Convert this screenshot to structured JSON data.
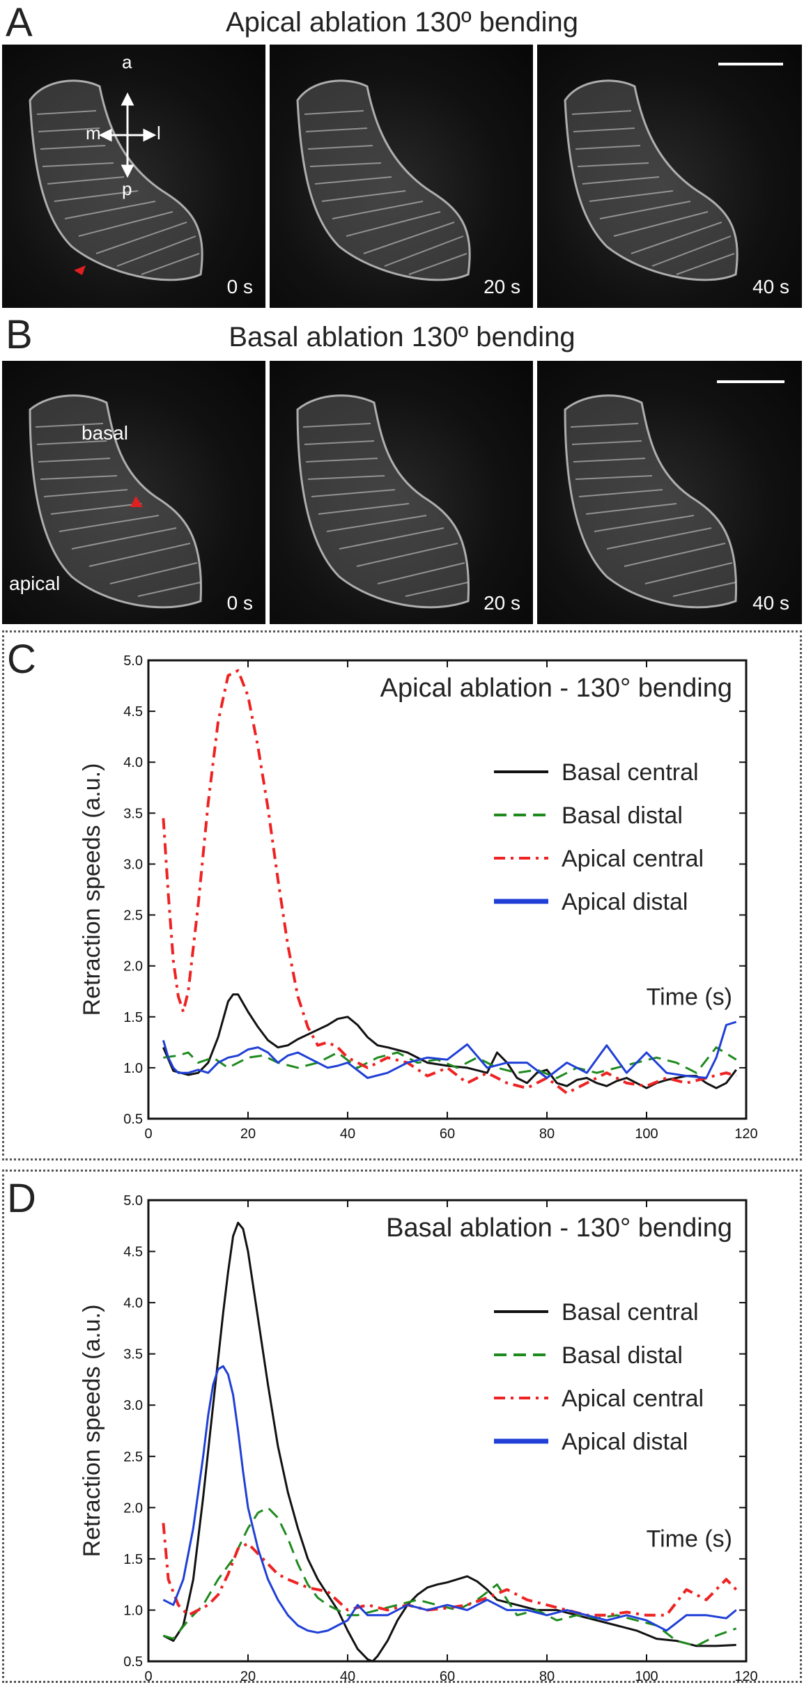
{
  "panels": {
    "A": {
      "letter": "A",
      "title": "Apical ablation 130º bending",
      "compass": {
        "a": "a",
        "p": "p",
        "m": "m",
        "l": "l"
      },
      "times": [
        "0 s",
        "20 s",
        "40 s"
      ]
    },
    "B": {
      "letter": "B",
      "title": "Basal ablation 130º bending",
      "labels": {
        "basal": "basal",
        "apical": "apical"
      },
      "times": [
        "0 s",
        "20 s",
        "40 s"
      ]
    },
    "C": {
      "letter": "C"
    },
    "D": {
      "letter": "D"
    }
  },
  "colors": {
    "basal_central": "#111111",
    "basal_distal": "#1e8a1e",
    "apical_central": "#ee2222",
    "apical_distal": "#1f3fd6",
    "arrowhead": "#e02020"
  },
  "chart_data": [
    {
      "type": "line",
      "title": "Apical ablation  - 130° bending",
      "xlabel": "Time (s)",
      "ylabel": "Retraction speeds (a.u.)",
      "xlim": [
        0,
        120
      ],
      "ylim": [
        0.5,
        5.0
      ],
      "xticks": [
        "0",
        "20",
        "40",
        "60",
        "80",
        "100",
        "120"
      ],
      "yticks": [
        "0.5",
        "1.0",
        "1.5",
        "2.0",
        "2.5",
        "3.0",
        "3.5",
        "4.0",
        "4.5",
        "5.0"
      ],
      "legend_position": "right",
      "series": [
        {
          "name": "Basal central",
          "style": "solid",
          "x": [
            3,
            5,
            8,
            10,
            12,
            14,
            16,
            17,
            18,
            20,
            22,
            24,
            26,
            28,
            30,
            33,
            36,
            38,
            40,
            42,
            44,
            46,
            48,
            52,
            56,
            60,
            64,
            68,
            70,
            72,
            74,
            76,
            78,
            80,
            82,
            84,
            86,
            88,
            90,
            92,
            94,
            96,
            98,
            100,
            102,
            104,
            106,
            108,
            110,
            112,
            114,
            116,
            118
          ],
          "y": [
            1.2,
            0.97,
            0.93,
            0.95,
            1.05,
            1.3,
            1.65,
            1.72,
            1.72,
            1.55,
            1.4,
            1.27,
            1.2,
            1.22,
            1.28,
            1.35,
            1.42,
            1.48,
            1.5,
            1.42,
            1.3,
            1.22,
            1.2,
            1.15,
            1.05,
            1.02,
            1.0,
            0.95,
            1.15,
            1.05,
            0.9,
            0.85,
            0.95,
            0.98,
            0.85,
            0.82,
            0.88,
            0.9,
            0.85,
            0.82,
            0.87,
            0.9,
            0.85,
            0.8,
            0.85,
            0.88,
            0.9,
            0.92,
            0.92,
            0.85,
            0.8,
            0.85,
            0.98
          ]
        },
        {
          "name": "Basal distal",
          "style": "dashed",
          "x": [
            3,
            6,
            8,
            10,
            13,
            16,
            18,
            20,
            23,
            26,
            30,
            34,
            38,
            42,
            46,
            50,
            54,
            58,
            62,
            66,
            70,
            74,
            78,
            82,
            86,
            90,
            94,
            98,
            102,
            106,
            110,
            114,
            118
          ],
          "y": [
            1.1,
            1.12,
            1.15,
            1.05,
            1.1,
            1.0,
            1.05,
            1.1,
            1.12,
            1.05,
            1.0,
            1.05,
            1.15,
            1.0,
            1.1,
            1.15,
            1.05,
            1.08,
            1.0,
            1.1,
            1.0,
            0.95,
            0.98,
            0.9,
            1.0,
            0.95,
            1.0,
            1.05,
            1.1,
            1.05,
            0.95,
            1.2,
            1.08
          ]
        },
        {
          "name": "Apical central",
          "style": "dashdot",
          "x": [
            3,
            4,
            5,
            6,
            7,
            8,
            10,
            12,
            14,
            16,
            18,
            20,
            22,
            24,
            26,
            28,
            30,
            32,
            34,
            36,
            38,
            40,
            44,
            48,
            52,
            56,
            60,
            64,
            68,
            72,
            76,
            80,
            84,
            88,
            92,
            96,
            100,
            104,
            108,
            112,
            116,
            118
          ],
          "y": [
            3.45,
            2.7,
            2.05,
            1.7,
            1.55,
            1.75,
            2.6,
            3.6,
            4.4,
            4.85,
            4.9,
            4.65,
            4.15,
            3.55,
            2.85,
            2.2,
            1.7,
            1.4,
            1.22,
            1.25,
            1.2,
            1.1,
            1.0,
            1.1,
            1.05,
            0.92,
            1.0,
            0.85,
            0.95,
            0.85,
            0.8,
            0.9,
            0.75,
            0.85,
            0.95,
            0.85,
            0.82,
            0.9,
            0.85,
            0.9,
            0.95,
            0.92
          ]
        },
        {
          "name": "Apical distal",
          "style": "solid",
          "x": [
            3,
            4,
            5,
            6,
            8,
            10,
            12,
            14,
            16,
            18,
            20,
            22,
            24,
            26,
            28,
            30,
            32,
            34,
            36,
            38,
            40,
            44,
            48,
            52,
            56,
            60,
            64,
            68,
            72,
            76,
            80,
            84,
            88,
            92,
            96,
            100,
            104,
            108,
            112,
            114,
            116,
            118
          ],
          "y": [
            1.27,
            1.1,
            1.0,
            0.95,
            0.95,
            0.98,
            0.95,
            1.05,
            1.1,
            1.12,
            1.18,
            1.2,
            1.15,
            1.05,
            1.12,
            1.15,
            1.1,
            1.05,
            1.0,
            1.02,
            1.05,
            0.9,
            0.95,
            1.05,
            1.1,
            1.08,
            1.23,
            1.0,
            1.05,
            1.05,
            0.9,
            1.05,
            0.95,
            1.22,
            0.95,
            1.15,
            0.95,
            0.92,
            0.9,
            1.1,
            1.42,
            1.45
          ]
        }
      ]
    },
    {
      "type": "line",
      "title": "Basal ablation  - 130° bending",
      "xlabel": "Time (s)",
      "ylabel": "Retraction speeds (a.u.)",
      "xlim": [
        0,
        120
      ],
      "ylim": [
        0.5,
        5.0
      ],
      "xticks": [
        "0",
        "20",
        "40",
        "60",
        "80",
        "100",
        "120"
      ],
      "yticks": [
        "0.5",
        "1.0",
        "1.5",
        "2.0",
        "2.5",
        "3.0",
        "3.5",
        "4.0",
        "4.5",
        "5.0"
      ],
      "legend_position": "right",
      "series": [
        {
          "name": "Basal central",
          "style": "solid",
          "x": [
            3,
            5,
            7,
            9,
            11,
            13,
            15,
            16,
            17,
            18,
            19,
            20,
            22,
            24,
            26,
            28,
            30,
            32,
            34,
            36,
            38,
            40,
            42,
            44,
            45,
            46,
            48,
            50,
            52,
            54,
            56,
            58,
            60,
            62,
            64,
            66,
            68,
            70,
            74,
            78,
            82,
            86,
            90,
            94,
            98,
            102,
            106,
            110,
            114,
            118
          ],
          "y": [
            0.75,
            0.7,
            0.85,
            1.3,
            2.1,
            3.0,
            3.9,
            4.3,
            4.65,
            4.78,
            4.72,
            4.5,
            3.85,
            3.2,
            2.6,
            2.15,
            1.8,
            1.5,
            1.3,
            1.15,
            1.0,
            0.8,
            0.62,
            0.52,
            0.5,
            0.55,
            0.7,
            0.9,
            1.05,
            1.15,
            1.22,
            1.25,
            1.27,
            1.3,
            1.33,
            1.28,
            1.2,
            1.1,
            1.05,
            1.0,
            1.0,
            0.95,
            0.9,
            0.85,
            0.8,
            0.72,
            0.7,
            0.65,
            0.65,
            0.66
          ]
        },
        {
          "name": "Basal distal",
          "style": "dashed",
          "x": [
            3,
            5,
            8,
            11,
            14,
            17,
            20,
            22,
            24,
            26,
            28,
            30,
            32,
            34,
            36,
            38,
            40,
            42,
            46,
            50,
            54,
            58,
            62,
            66,
            70,
            74,
            78,
            82,
            86,
            90,
            94,
            98,
            102,
            106,
            110,
            114,
            118
          ],
          "y": [
            0.75,
            0.72,
            0.9,
            1.05,
            1.3,
            1.5,
            1.8,
            1.95,
            2.0,
            1.9,
            1.7,
            1.45,
            1.25,
            1.12,
            1.05,
            1.0,
            0.95,
            0.95,
            1.0,
            1.05,
            1.1,
            1.05,
            1.0,
            1.1,
            1.25,
            0.95,
            1.0,
            0.9,
            0.95,
            0.92,
            0.95,
            0.9,
            0.85,
            0.7,
            0.65,
            0.75,
            0.82
          ]
        },
        {
          "name": "Apical central",
          "style": "dashdot",
          "x": [
            3,
            4,
            6,
            8,
            10,
            12,
            14,
            16,
            18,
            20,
            22,
            24,
            26,
            28,
            32,
            36,
            40,
            44,
            48,
            52,
            56,
            60,
            64,
            68,
            72,
            76,
            80,
            84,
            88,
            92,
            96,
            100,
            104,
            108,
            112,
            116,
            118
          ],
          "y": [
            1.85,
            1.3,
            1.05,
            0.95,
            1.0,
            1.05,
            1.15,
            1.35,
            1.6,
            1.65,
            1.55,
            1.45,
            1.35,
            1.3,
            1.22,
            1.18,
            1.0,
            1.05,
            1.0,
            1.05,
            1.0,
            1.02,
            1.05,
            1.12,
            1.2,
            1.1,
            1.05,
            1.0,
            0.95,
            0.95,
            0.98,
            0.95,
            0.95,
            1.2,
            1.1,
            1.3,
            1.2
          ]
        },
        {
          "name": "Apical distal",
          "style": "solid",
          "x": [
            3,
            5,
            7,
            9,
            11,
            12,
            13,
            14,
            15,
            16,
            17,
            18,
            19,
            20,
            22,
            24,
            26,
            28,
            30,
            32,
            34,
            36,
            38,
            40,
            42,
            44,
            48,
            52,
            56,
            60,
            64,
            68,
            72,
            76,
            80,
            84,
            88,
            92,
            96,
            100,
            104,
            108,
            112,
            116,
            118
          ],
          "y": [
            1.1,
            1.05,
            1.3,
            1.8,
            2.5,
            2.9,
            3.2,
            3.35,
            3.38,
            3.3,
            3.1,
            2.75,
            2.35,
            2.0,
            1.6,
            1.3,
            1.1,
            0.95,
            0.85,
            0.8,
            0.78,
            0.8,
            0.85,
            0.9,
            1.05,
            0.95,
            0.95,
            1.05,
            1.0,
            1.05,
            1.0,
            1.1,
            1.0,
            1.0,
            0.95,
            1.0,
            0.95,
            0.9,
            0.95,
            0.9,
            0.8,
            0.95,
            0.95,
            0.92,
            1.0
          ]
        }
      ]
    }
  ]
}
